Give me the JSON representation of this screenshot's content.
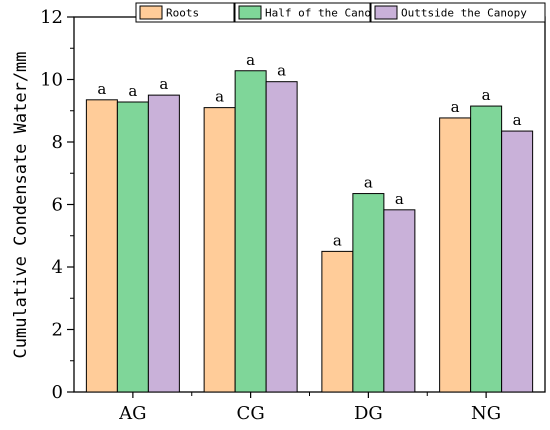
{
  "chart_data": {
    "type": "bar",
    "categories": [
      "AG",
      "CG",
      "DG",
      "NG"
    ],
    "series": [
      {
        "name": "Roots",
        "color": "#FFCC99",
        "values": [
          9.35,
          9.1,
          4.5,
          8.77
        ],
        "labels": [
          "a",
          "a",
          "a",
          "a"
        ]
      },
      {
        "name": "Half of the Canopy",
        "color": "#7FD699",
        "values": [
          9.28,
          10.28,
          6.35,
          9.15
        ],
        "labels": [
          "a",
          "a",
          "a",
          "a"
        ]
      },
      {
        "name": "Outtside the Canopy",
        "color": "#C9B1D9",
        "values": [
          9.5,
          9.93,
          5.83,
          8.35
        ],
        "labels": [
          "a",
          "a",
          "a",
          "a"
        ]
      }
    ],
    "ylabel": "Cumulative Condensate Water/mm",
    "xlabel": "",
    "ylim": [
      0,
      12
    ],
    "yticks": [
      "0",
      "2",
      "4",
      "6",
      "8",
      "10",
      "12"
    ],
    "legend_position": "top-right",
    "grid": false
  }
}
